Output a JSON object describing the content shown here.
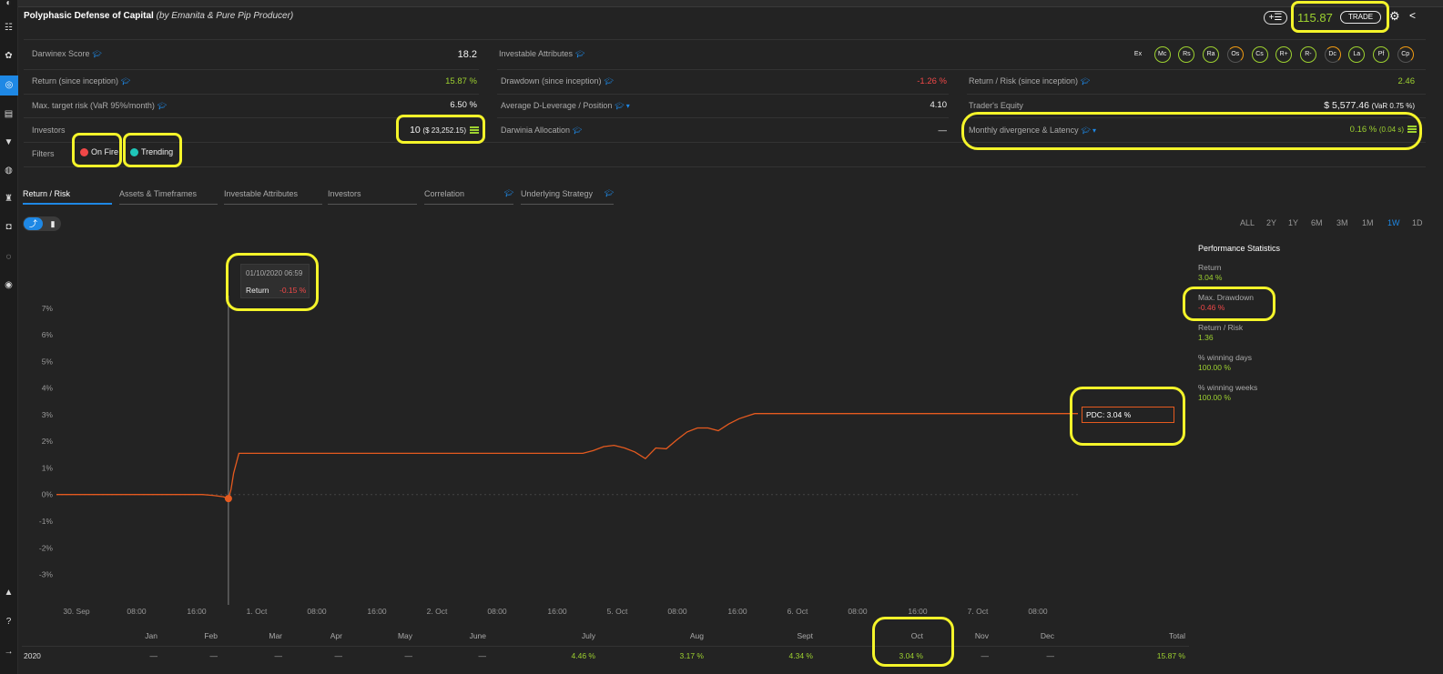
{
  "header": {
    "title": "Polyphasic Defense of Capital",
    "subtitle": "(by Emanita & Pure Pip Producer)",
    "price": "115.87",
    "trade_label": "TRADE",
    "plus_label": "+☰"
  },
  "stats": {
    "darwinex_score": {
      "label": "Darwinex Score",
      "value": "18.2"
    },
    "investable_attributes": {
      "label": "Investable Attributes"
    },
    "return_inception": {
      "label": "Return (since inception)",
      "value": "15.87 %"
    },
    "drawdown_inception": {
      "label": "Drawdown (since inception)",
      "value": "-1.26 %"
    },
    "return_risk": {
      "label": "Return / Risk (since inception)",
      "value": "2.46"
    },
    "max_target_risk": {
      "label": "Max. target risk (VaR 95%/month)",
      "value": "6.50 %"
    },
    "avg_dleverage": {
      "label": "Average D-Leverage / Position",
      "value": "4.10"
    },
    "traders_equity": {
      "label": "Trader's Equity",
      "value": "$ 5,577.46",
      "var": "(VaR 0.75 %)"
    },
    "investors": {
      "label": "Investors",
      "count": "10",
      "amount": "($ 23,252.15)"
    },
    "darwinia_allocation": {
      "label": "Darwinia Allocation",
      "value": "—"
    },
    "monthly_divergence": {
      "label": "Monthly divergence & Latency",
      "value": "0.16 %",
      "latency": "(0.04 s)"
    },
    "filters": {
      "label": "Filters",
      "on_fire": "On Fire",
      "trending": "Trending"
    }
  },
  "attributes": [
    "Ex",
    "Mc",
    "Rs",
    "Ra",
    "Os",
    "Cs",
    "R+",
    "R-",
    "Dc",
    "La",
    "Pf",
    "Cp"
  ],
  "tabs": [
    "Return / Risk",
    "Assets & Timeframes",
    "Investable Attributes",
    "Investors",
    "Correlation",
    "Underlying Strategy"
  ],
  "ranges": [
    "ALL",
    "2Y",
    "1Y",
    "6M",
    "3M",
    "1M",
    "1W",
    "1D"
  ],
  "active_range": "1W",
  "tooltip": {
    "date": "01/10/2020 06:59",
    "label": "Return",
    "value": "-0.15 %"
  },
  "pdc_label": "PDC: 3.04 %",
  "chart_data": {
    "type": "line",
    "series": [
      {
        "name": "PDC",
        "values": [
          [
            0,
            0
          ],
          [
            4,
            0
          ],
          [
            8,
            0
          ],
          [
            12,
            0
          ],
          [
            16,
            0
          ],
          [
            20,
            0
          ],
          [
            24,
            0
          ],
          [
            28,
            0
          ],
          [
            30,
            -0.03
          ],
          [
            32,
            -0.08
          ],
          [
            33,
            -0.15
          ],
          [
            33.5,
            0.2
          ],
          [
            34,
            0.8
          ],
          [
            35,
            1.55
          ],
          [
            37,
            1.55
          ],
          [
            44,
            1.55
          ],
          [
            56,
            1.55
          ],
          [
            68,
            1.55
          ],
          [
            80,
            1.55
          ],
          [
            92,
            1.55
          ],
          [
            101,
            1.55
          ],
          [
            103,
            1.65
          ],
          [
            105,
            1.8
          ],
          [
            107,
            1.85
          ],
          [
            109,
            1.75
          ],
          [
            111,
            1.6
          ],
          [
            113,
            1.35
          ],
          [
            115,
            1.75
          ],
          [
            117,
            1.72
          ],
          [
            119,
            2.05
          ],
          [
            121,
            2.35
          ],
          [
            123,
            2.5
          ],
          [
            125,
            2.5
          ],
          [
            127,
            2.4
          ],
          [
            129,
            2.65
          ],
          [
            131,
            2.85
          ],
          [
            133,
            2.98
          ],
          [
            134,
            3.04
          ],
          [
            140,
            3.04
          ],
          [
            152,
            3.04
          ],
          [
            164,
            3.04
          ],
          [
            176,
            3.04
          ],
          [
            188,
            3.04
          ],
          [
            196,
            3.04
          ]
        ]
      }
    ],
    "x_ticks": [
      "30. Sep",
      "08:00",
      "16:00",
      "1. Oct",
      "08:00",
      "16:00",
      "2. Oct",
      "08:00",
      "16:00",
      "5. Oct",
      "08:00",
      "16:00",
      "6. Oct",
      "08:00",
      "16:00",
      "7. Oct",
      "08:00"
    ],
    "y_ticks": [
      "7%",
      "6%",
      "5%",
      "4%",
      "3%",
      "2%",
      "1%",
      "0%",
      "-1%",
      "-2%",
      "-3%"
    ],
    "ylim": [
      -3.8,
      7.3
    ],
    "xlim": [
      0,
      196
    ],
    "marker_x": 33
  },
  "performance": {
    "title": "Performance Statistics",
    "items": [
      {
        "label": "Return",
        "value": "3.04 %",
        "color": "#9dd130"
      },
      {
        "label": "Max. Drawdown",
        "value": "-0.46 %",
        "color": "#f04848"
      },
      {
        "label": "Return / Risk",
        "value": "1.36",
        "color": "#9dd130"
      },
      {
        "label": "% winning days",
        "value": "100.00 %",
        "color": "#9dd130"
      },
      {
        "label": "% winning weeks",
        "value": "100.00 %",
        "color": "#9dd130"
      }
    ]
  },
  "monthly": {
    "months": [
      "Jan",
      "Feb",
      "Mar",
      "Apr",
      "May",
      "June",
      "July",
      "Aug",
      "Sept",
      "Oct",
      "Nov",
      "Dec",
      "Total"
    ],
    "year": "2020",
    "values": [
      "—",
      "—",
      "—",
      "—",
      "—",
      "—",
      "4.46 %",
      "3.17 %",
      "4.34 %",
      "3.04 %",
      "—",
      "—",
      "15.87 %"
    ]
  }
}
